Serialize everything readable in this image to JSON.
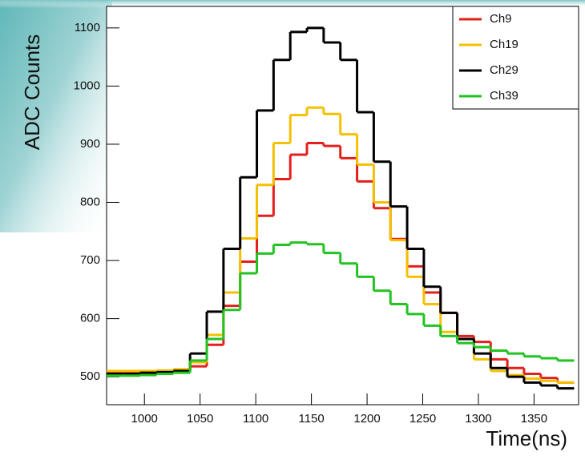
{
  "chart_data": {
    "type": "histogram",
    "xlabel": "Time(ns)",
    "ylabel": "ADC Counts",
    "bins": [
      966,
      981,
      996,
      1011,
      1026,
      1041,
      1056,
      1071,
      1086,
      1101,
      1116,
      1131,
      1146,
      1161,
      1176,
      1191,
      1206,
      1221,
      1236,
      1251,
      1266,
      1281,
      1296,
      1311,
      1326,
      1341,
      1356,
      1371,
      1386
    ],
    "series": [
      {
        "name": "Ch9",
        "color": "#e3201b",
        "values": [
          508,
          508,
          509,
          510,
          512,
          518,
          555,
          622,
          698,
          777,
          840,
          882,
          902,
          897,
          876,
          836,
          790,
          737,
          690,
          645,
          610,
          570,
          560,
          530,
          515,
          505,
          498,
          490
        ]
      },
      {
        "name": "Ch19",
        "color": "#f5c000",
        "values": [
          510,
          510,
          510,
          511,
          513,
          525,
          572,
          645,
          738,
          830,
          902,
          950,
          963,
          952,
          917,
          865,
          800,
          735,
          672,
          625,
          577,
          565,
          530,
          510,
          503,
          497,
          493,
          490
        ]
      },
      {
        "name": "Ch29",
        "color": "#000000",
        "values": [
          505,
          505,
          507,
          508,
          510,
          540,
          612,
          720,
          843,
          958,
          1045,
          1093,
          1100,
          1075,
          1045,
          955,
          870,
          793,
          720,
          655,
          610,
          565,
          540,
          515,
          500,
          490,
          485,
          480
        ]
      },
      {
        "name": "Ch39",
        "color": "#22c322",
        "values": [
          502,
          502,
          503,
          505,
          507,
          528,
          565,
          615,
          678,
          712,
          727,
          731,
          728,
          713,
          695,
          672,
          648,
          625,
          608,
          588,
          570,
          558,
          551,
          545,
          540,
          535,
          532,
          528
        ]
      }
    ],
    "xlim": [
      966,
      1390
    ],
    "ylim": [
      452,
      1137
    ],
    "xticks": [
      1000,
      1050,
      1100,
      1150,
      1200,
      1250,
      1300,
      1350
    ],
    "yticks": [
      500,
      600,
      700,
      800,
      900,
      1000,
      1100
    ],
    "legend": "upper right"
  }
}
